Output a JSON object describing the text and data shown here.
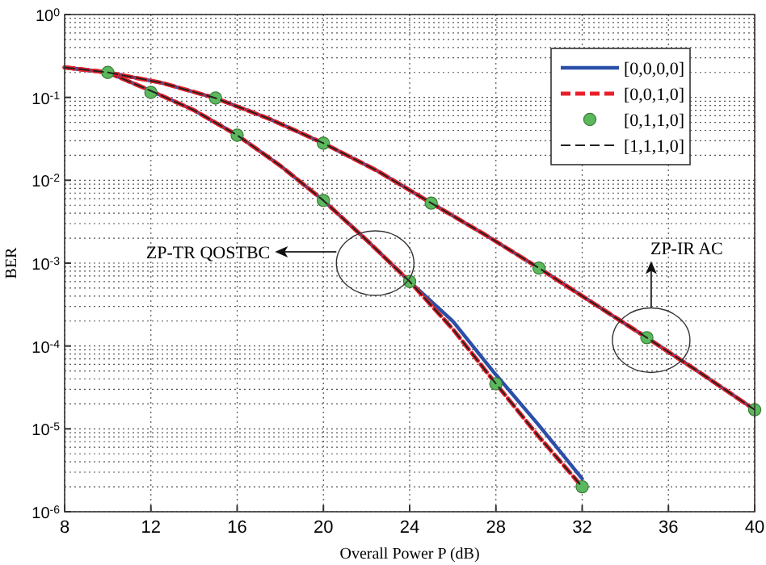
{
  "chart_data": {
    "type": "line",
    "xlabel": "Overall Power P (dB)",
    "ylabel": "BER",
    "log": "y",
    "grid": true,
    "legend": "top right",
    "xlim": [
      8,
      40
    ],
    "xticks": [
      8,
      12,
      16,
      20,
      24,
      28,
      32,
      36,
      40
    ],
    "ylim": [
      1e-06,
      1
    ],
    "yticks": [
      {
        "value": 1e-06,
        "label": "10$^{-6}$"
      },
      {
        "value": 1e-05,
        "label": "10$^{-5}$"
      },
      {
        "value": 0.0001,
        "label": "10$^{-4}$"
      },
      {
        "value": 0.001,
        "label": "10$^{-3}$"
      },
      {
        "value": 0.01,
        "label": "10$^{-2}$"
      },
      {
        "value": 0.1,
        "label": "10$^{-1}$"
      },
      {
        "value": 1,
        "label": "10$^{0}$"
      }
    ],
    "series": [
      {
        "name": "[0,0,0,0]",
        "color": "#2b4fa8",
        "line_style": "solid",
        "marker": "none",
        "x": [
          8,
          10,
          12,
          14,
          16,
          18,
          20,
          22,
          24,
          26,
          28,
          30,
          32
        ],
        "values": [
          0.23,
          0.2,
          0.12,
          0.07,
          0.035,
          0.015,
          0.0057,
          0.0019,
          0.0006,
          0.0002,
          4.5e-05,
          1.1e-05,
          2.5e-06
        ]
      },
      {
        "name": "[0,0,1,0]",
        "color": "#e8202a",
        "line_style": "dashed",
        "marker": "none",
        "x": [
          8,
          10,
          12,
          14,
          16,
          18,
          20,
          22,
          24,
          26,
          28,
          30,
          32
        ],
        "values": [
          0.23,
          0.2,
          0.12,
          0.07,
          0.035,
          0.015,
          0.0057,
          0.0019,
          0.0006,
          0.00016,
          3.5e-05,
          8e-06,
          2e-06
        ]
      },
      {
        "name": "[0,1,1,0]",
        "type": "scatter",
        "color": "#5cb85c",
        "marker": "circle",
        "x": [
          12,
          16,
          20,
          24,
          28,
          32
        ],
        "values": [
          0.115,
          0.035,
          0.0057,
          0.0006,
          3.5e-05,
          2e-06
        ]
      },
      {
        "name": "[1,1,1,0]",
        "color": "#222222",
        "line_style": "dashed",
        "marker": "none",
        "x": [
          8,
          10,
          12,
          14,
          16,
          18,
          20,
          22,
          24,
          26,
          28,
          30,
          32
        ],
        "values": [
          0.23,
          0.2,
          0.12,
          0.07,
          0.035,
          0.015,
          0.0057,
          0.0019,
          0.0006,
          0.00016,
          3.5e-05,
          8e-06,
          2e-06
        ]
      },
      {
        "color": "#2b4fa8",
        "line_style": "solid",
        "marker": "none",
        "x": [
          8,
          10,
          12.5,
          15,
          17.5,
          20,
          22.5,
          25,
          27.5,
          30,
          32.5,
          35,
          37.5,
          40
        ],
        "values": [
          0.23,
          0.2,
          0.15,
          0.098,
          0.055,
          0.028,
          0.013,
          0.0053,
          0.0022,
          0.00087,
          0.00033,
          0.000126,
          4.7e-05,
          1.7e-05
        ]
      },
      {
        "color": "#e8202a",
        "line_style": "dashed",
        "marker": "none",
        "x": [
          8,
          10,
          12.5,
          15,
          17.5,
          20,
          22.5,
          25,
          27.5,
          30,
          32.5,
          35,
          37.5,
          40
        ],
        "values": [
          0.23,
          0.2,
          0.15,
          0.098,
          0.055,
          0.028,
          0.013,
          0.0053,
          0.0022,
          0.00087,
          0.00033,
          0.000126,
          4.7e-05,
          1.7e-05
        ]
      },
      {
        "type": "scatter",
        "color": "#5cb85c",
        "marker": "circle",
        "x": [
          10,
          15,
          20,
          25,
          30,
          35,
          40
        ],
        "values": [
          0.2,
          0.098,
          0.028,
          0.0053,
          0.00087,
          0.000126,
          1.7e-05
        ]
      },
      {
        "color": "#222222",
        "line_style": "dashed",
        "marker": "none",
        "x": [
          8,
          10,
          12.5,
          15,
          17.5,
          20,
          22.5,
          25,
          27.5,
          30,
          32.5,
          35,
          37.5,
          40
        ],
        "values": [
          0.23,
          0.2,
          0.15,
          0.098,
          0.055,
          0.028,
          0.013,
          0.0053,
          0.0022,
          0.00087,
          0.00033,
          0.000126,
          4.7e-05,
          1.7e-05
        ]
      }
    ],
    "annotations": [
      "ZP-TR QOSTBC",
      "ZP-IR AC"
    ]
  }
}
